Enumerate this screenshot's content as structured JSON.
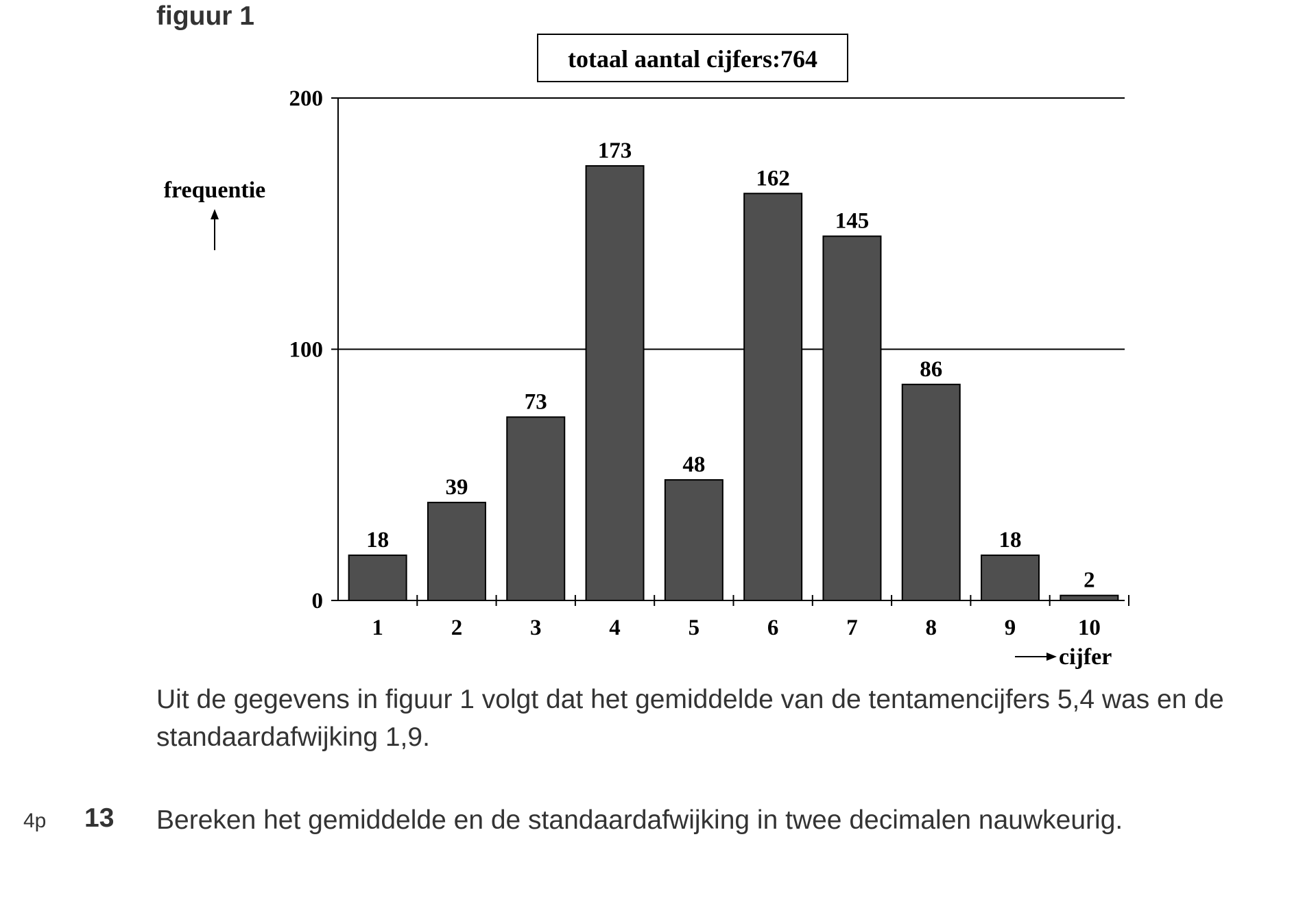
{
  "figure_label": "figuur 1",
  "chart_data": {
    "type": "bar",
    "title": "totaal aantal cijfers:764",
    "xlabel": "cijfer",
    "ylabel": "frequentie",
    "categories": [
      "1",
      "2",
      "3",
      "4",
      "5",
      "6",
      "7",
      "8",
      "9",
      "10"
    ],
    "values": [
      18,
      39,
      73,
      173,
      48,
      162,
      145,
      86,
      18,
      2
    ],
    "data_labels": [
      "18",
      "39",
      "73",
      "173",
      "48",
      "162",
      "145",
      "86",
      "18",
      "2"
    ],
    "yticks": [
      0,
      100,
      200
    ],
    "ylim": [
      0,
      200
    ],
    "grid": "horizontal lines at 100 and 200",
    "bar_color": "#4f4f4f"
  },
  "paragraph": "Uit de gegevens in figuur 1 volgt dat het gemiddelde van de tentamencijfers 5,4 was en de standaardafwijking 1,9.",
  "question": {
    "points": "4p",
    "number": "13",
    "text": "Bereken het gemiddelde en de standaardafwijking in twee decimalen nauwkeurig."
  }
}
